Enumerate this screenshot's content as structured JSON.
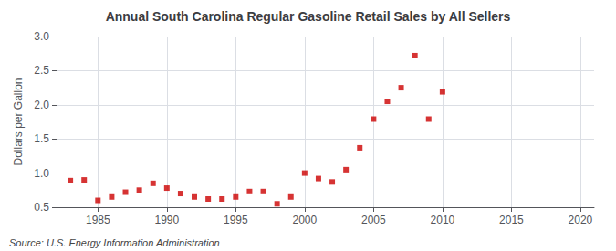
{
  "chart_data": {
    "type": "scatter",
    "title": "Annual South Carolina Regular Gasoline Retail Sales by All Sellers",
    "ylabel": "Dollars per Gallon",
    "annotations": [
      "Source: U.S. Energy Information Administration"
    ],
    "x": [
      1983,
      1984,
      1985,
      1986,
      1987,
      1988,
      1989,
      1990,
      1991,
      1992,
      1993,
      1994,
      1995,
      1996,
      1997,
      1998,
      1999,
      2000,
      2001,
      2002,
      2003,
      2004,
      2005,
      2006,
      2007,
      2008,
      2009,
      2010
    ],
    "values": [
      0.89,
      0.9,
      0.6,
      0.65,
      0.72,
      0.75,
      0.85,
      0.78,
      0.7,
      0.65,
      0.62,
      0.62,
      0.65,
      0.73,
      0.73,
      0.55,
      0.65,
      1.0,
      0.92,
      0.87,
      1.05,
      1.37,
      1.79,
      2.05,
      2.25,
      2.72,
      1.79,
      2.19
    ],
    "color": "#cc0000",
    "marker": "square",
    "xlim": [
      1982,
      2021
    ],
    "ylim": [
      0.5,
      3.0
    ],
    "xticks": [
      1985,
      1990,
      1995,
      2000,
      2005,
      2010,
      2015,
      2020
    ],
    "yticks": [
      0.5,
      {
        "value": 1,
        "label": "1.0"
      },
      1.5,
      {
        "value": 2,
        "label": "2.0"
      },
      2.5,
      {
        "value": 3,
        "label": "3.0"
      }
    ],
    "grid": true
  }
}
